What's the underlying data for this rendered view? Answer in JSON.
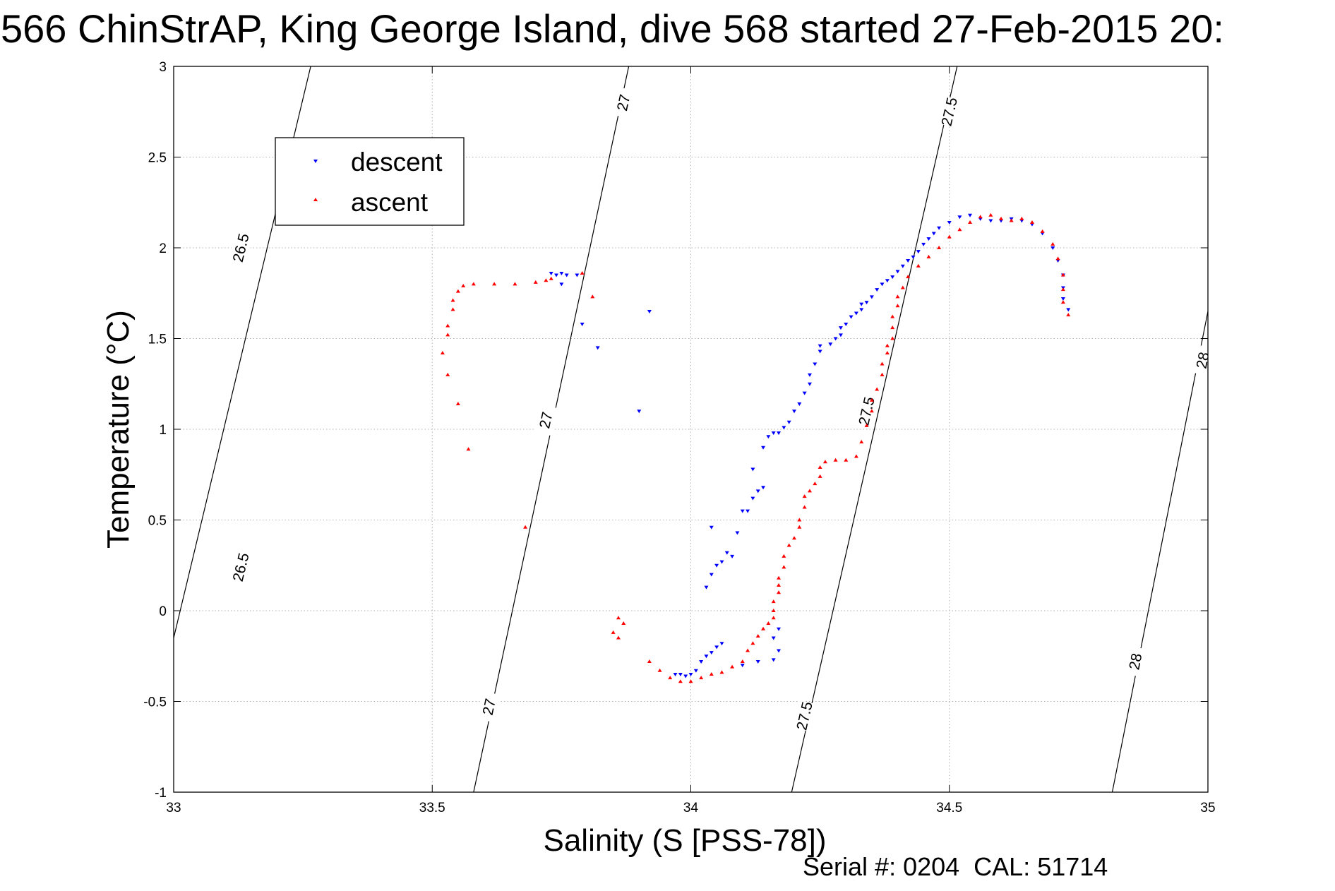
{
  "chart_data": {
    "type": "scatter",
    "title": "566 ChinStrAP, King George Island, dive 568 started 27-Feb-2015 20:",
    "xlabel": "Salinity (S [PSS-78])",
    "ylabel": "Temperature (°C)",
    "xlim": [
      33,
      35
    ],
    "ylim": [
      -1,
      3
    ],
    "xticks": [
      33,
      33.5,
      34,
      34.5,
      35
    ],
    "xtick_labels": [
      "33",
      "33.5",
      "34",
      "34.5",
      "35"
    ],
    "yticks": [
      -1,
      -0.5,
      0,
      0.5,
      1,
      1.5,
      2,
      2.5,
      3
    ],
    "ytick_labels": [
      "-1",
      "-0.5",
      "0",
      "0.5",
      "1",
      "1.5",
      "2",
      "2.5",
      "3"
    ],
    "grid": true,
    "legend_position": "top-left",
    "series": [
      {
        "name": "descent",
        "color": "#0000ff",
        "marker": "triangle-down",
        "points": [
          [
            33.73,
            1.86
          ],
          [
            33.74,
            1.85
          ],
          [
            33.75,
            1.86
          ],
          [
            33.76,
            1.85
          ],
          [
            33.78,
            1.85
          ],
          [
            33.75,
            1.8
          ],
          [
            33.79,
            1.58
          ],
          [
            33.82,
            1.45
          ],
          [
            33.9,
            1.1
          ],
          [
            33.92,
            1.65
          ],
          [
            33.97,
            -0.35
          ],
          [
            33.98,
            -0.35
          ],
          [
            33.99,
            -0.36
          ],
          [
            34.0,
            -0.35
          ],
          [
            34.01,
            -0.33
          ],
          [
            34.02,
            -0.28
          ],
          [
            34.03,
            -0.25
          ],
          [
            34.04,
            -0.23
          ],
          [
            34.05,
            -0.2
          ],
          [
            34.06,
            -0.18
          ],
          [
            34.1,
            -0.3
          ],
          [
            34.13,
            -0.28
          ],
          [
            34.16,
            -0.27
          ],
          [
            34.17,
            -0.22
          ],
          [
            34.16,
            -0.15
          ],
          [
            34.17,
            -0.1
          ],
          [
            34.03,
            0.13
          ],
          [
            34.04,
            0.2
          ],
          [
            34.05,
            0.25
          ],
          [
            34.06,
            0.27
          ],
          [
            34.07,
            0.32
          ],
          [
            34.08,
            0.3
          ],
          [
            34.09,
            0.43
          ],
          [
            34.1,
            0.55
          ],
          [
            34.11,
            0.55
          ],
          [
            34.12,
            0.62
          ],
          [
            34.13,
            0.66
          ],
          [
            34.14,
            0.68
          ],
          [
            34.04,
            0.46
          ],
          [
            34.12,
            0.78
          ],
          [
            34.14,
            0.9
          ],
          [
            34.15,
            0.96
          ],
          [
            34.16,
            0.98
          ],
          [
            34.17,
            0.98
          ],
          [
            34.18,
            1.01
          ],
          [
            34.19,
            1.04
          ],
          [
            34.2,
            1.1
          ],
          [
            34.21,
            1.14
          ],
          [
            34.22,
            1.2
          ],
          [
            34.23,
            1.25
          ],
          [
            34.23,
            1.3
          ],
          [
            34.24,
            1.36
          ],
          [
            34.25,
            1.43
          ],
          [
            34.25,
            1.46
          ],
          [
            34.27,
            1.47
          ],
          [
            34.28,
            1.5
          ],
          [
            34.29,
            1.52
          ],
          [
            34.29,
            1.56
          ],
          [
            34.3,
            1.58
          ],
          [
            34.31,
            1.62
          ],
          [
            34.32,
            1.64
          ],
          [
            34.33,
            1.66
          ],
          [
            34.33,
            1.69
          ],
          [
            34.34,
            1.7
          ],
          [
            34.35,
            1.73
          ],
          [
            34.36,
            1.77
          ],
          [
            34.37,
            1.8
          ],
          [
            34.38,
            1.82
          ],
          [
            34.39,
            1.84
          ],
          [
            34.4,
            1.87
          ],
          [
            34.41,
            1.9
          ],
          [
            34.42,
            1.93
          ],
          [
            34.43,
            1.95
          ],
          [
            34.44,
            1.98
          ],
          [
            34.45,
            2.02
          ],
          [
            34.46,
            2.05
          ],
          [
            34.47,
            2.08
          ],
          [
            34.48,
            2.11
          ],
          [
            34.5,
            2.14
          ],
          [
            34.52,
            2.17
          ],
          [
            34.54,
            2.18
          ],
          [
            34.56,
            2.16
          ],
          [
            34.58,
            2.15
          ],
          [
            34.6,
            2.15
          ],
          [
            34.62,
            2.16
          ],
          [
            34.64,
            2.15
          ],
          [
            34.66,
            2.13
          ],
          [
            34.68,
            2.08
          ],
          [
            34.7,
            2.0
          ],
          [
            34.71,
            1.93
          ],
          [
            34.72,
            1.85
          ],
          [
            34.72,
            1.78
          ],
          [
            34.72,
            1.72
          ],
          [
            34.73,
            1.66
          ]
        ]
      },
      {
        "name": "ascent",
        "color": "#ff0000",
        "marker": "triangle-up",
        "points": [
          [
            33.73,
            1.83
          ],
          [
            33.72,
            1.82
          ],
          [
            33.7,
            1.81
          ],
          [
            33.66,
            1.8
          ],
          [
            33.62,
            1.8
          ],
          [
            33.58,
            1.8
          ],
          [
            33.56,
            1.79
          ],
          [
            33.55,
            1.76
          ],
          [
            33.54,
            1.71
          ],
          [
            33.54,
            1.66
          ],
          [
            33.53,
            1.57
          ],
          [
            33.53,
            1.52
          ],
          [
            33.52,
            1.42
          ],
          [
            33.53,
            1.3
          ],
          [
            33.55,
            1.14
          ],
          [
            33.57,
            0.89
          ],
          [
            33.68,
            0.46
          ],
          [
            33.79,
            1.86
          ],
          [
            33.81,
            1.73
          ],
          [
            33.86,
            -0.04
          ],
          [
            33.87,
            -0.07
          ],
          [
            33.85,
            -0.12
          ],
          [
            33.86,
            -0.15
          ],
          [
            33.92,
            -0.28
          ],
          [
            33.94,
            -0.33
          ],
          [
            33.96,
            -0.37
          ],
          [
            33.98,
            -0.39
          ],
          [
            34.0,
            -0.39
          ],
          [
            34.02,
            -0.37
          ],
          [
            34.04,
            -0.35
          ],
          [
            34.06,
            -0.34
          ],
          [
            34.08,
            -0.31
          ],
          [
            34.1,
            -0.28
          ],
          [
            34.11,
            -0.22
          ],
          [
            34.12,
            -0.18
          ],
          [
            34.13,
            -0.14
          ],
          [
            34.14,
            -0.1
          ],
          [
            34.15,
            -0.07
          ],
          [
            34.16,
            -0.04
          ],
          [
            34.16,
            0.0
          ],
          [
            34.16,
            0.05
          ],
          [
            34.17,
            0.1
          ],
          [
            34.17,
            0.14
          ],
          [
            34.17,
            0.18
          ],
          [
            34.18,
            0.24
          ],
          [
            34.18,
            0.3
          ],
          [
            34.19,
            0.36
          ],
          [
            34.2,
            0.4
          ],
          [
            34.21,
            0.46
          ],
          [
            34.21,
            0.5
          ],
          [
            34.22,
            0.57
          ],
          [
            34.22,
            0.63
          ],
          [
            34.23,
            0.66
          ],
          [
            34.24,
            0.7
          ],
          [
            34.25,
            0.74
          ],
          [
            34.25,
            0.79
          ],
          [
            34.26,
            0.82
          ],
          [
            34.28,
            0.83
          ],
          [
            34.3,
            0.83
          ],
          [
            34.32,
            0.85
          ],
          [
            34.33,
            0.93
          ],
          [
            34.34,
            1.02
          ],
          [
            34.35,
            1.1
          ],
          [
            34.35,
            1.16
          ],
          [
            34.36,
            1.22
          ],
          [
            34.37,
            1.3
          ],
          [
            34.37,
            1.36
          ],
          [
            34.38,
            1.42
          ],
          [
            34.38,
            1.46
          ],
          [
            34.39,
            1.5
          ],
          [
            34.39,
            1.56
          ],
          [
            34.39,
            1.62
          ],
          [
            34.4,
            1.68
          ],
          [
            34.4,
            1.73
          ],
          [
            34.41,
            1.78
          ],
          [
            34.42,
            1.84
          ],
          [
            34.44,
            1.9
          ],
          [
            34.46,
            1.95
          ],
          [
            34.48,
            2.0
          ],
          [
            34.5,
            2.06
          ],
          [
            34.52,
            2.1
          ],
          [
            34.54,
            2.14
          ],
          [
            34.56,
            2.17
          ],
          [
            34.58,
            2.18
          ],
          [
            34.6,
            2.16
          ],
          [
            34.62,
            2.15
          ],
          [
            34.64,
            2.16
          ],
          [
            34.66,
            2.14
          ],
          [
            34.68,
            2.09
          ],
          [
            34.7,
            2.02
          ],
          [
            34.71,
            1.94
          ],
          [
            34.72,
            1.85
          ],
          [
            34.72,
            1.77
          ],
          [
            34.72,
            1.7
          ],
          [
            34.73,
            1.63
          ]
        ]
      }
    ],
    "density_contours": [
      {
        "label": "26.5",
        "points": [
          [
            33.0,
            -0.15
          ],
          [
            33.265,
            3.0
          ]
        ],
        "label_positions": [
          [
            33.13,
            0.24
          ],
          [
            33.13,
            2.0
          ]
        ]
      },
      {
        "label": "27",
        "points": [
          [
            33.58,
            -1.0
          ],
          [
            33.88,
            3.0
          ]
        ],
        "label_positions": [
          [
            33.61,
            -0.53
          ],
          [
            33.72,
            1.05
          ],
          [
            33.87,
            2.8
          ]
        ]
      },
      {
        "label": "27.5",
        "points": [
          [
            34.195,
            -1.0
          ],
          [
            34.515,
            3.0
          ]
        ],
        "label_positions": [
          [
            34.22,
            -0.58
          ],
          [
            34.34,
            1.1
          ],
          [
            34.5,
            2.75
          ]
        ]
      },
      {
        "label": "28",
        "points": [
          [
            34.815,
            -1.0
          ],
          [
            35.0,
            1.65
          ]
        ],
        "label_positions": [
          [
            34.86,
            -0.28
          ],
          [
            34.99,
            1.38
          ]
        ]
      }
    ],
    "footer": "Serial #: 0204  CAL: 51714"
  }
}
